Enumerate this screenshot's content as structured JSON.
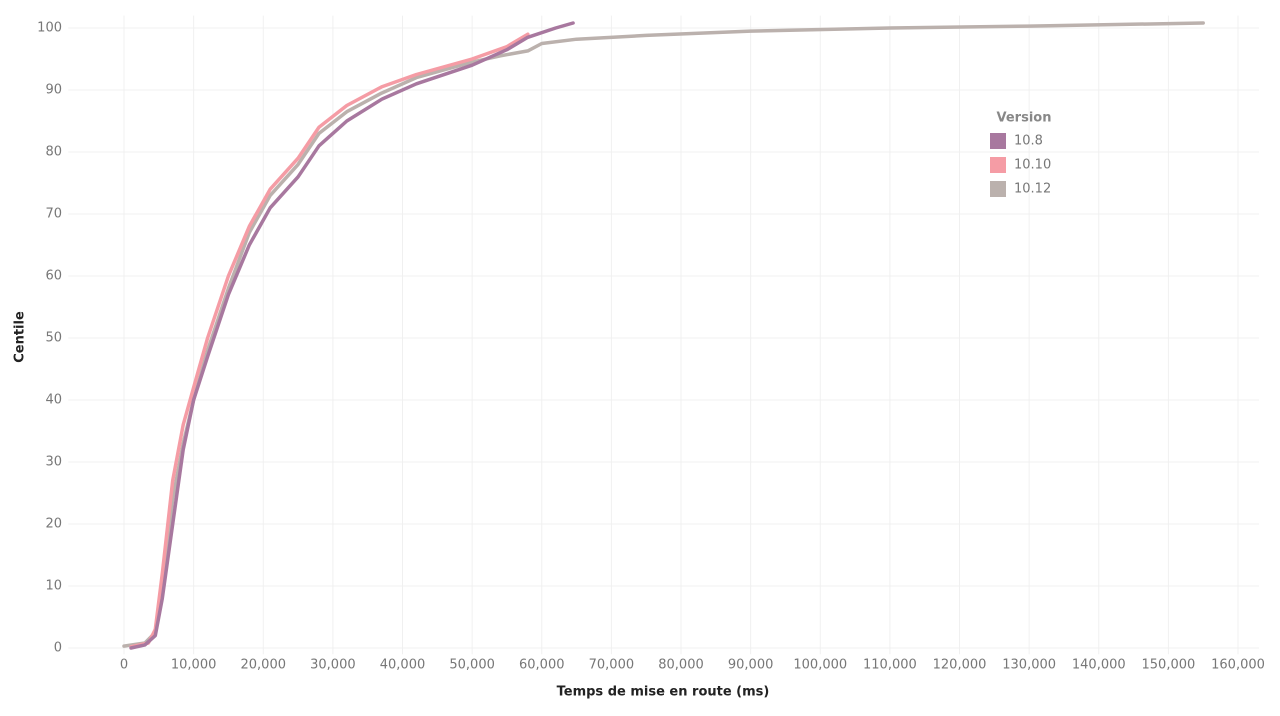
{
  "chart_data": {
    "type": "line",
    "x_label": "Temps de mise en route (ms)",
    "y_label": "Centile",
    "legend_title": "Version",
    "legend_position": "upper right",
    "grid": true,
    "xlim": [
      -8000,
      163000
    ],
    "ylim": [
      -1,
      102
    ],
    "xticks": [
      0,
      {
        "value": 10000,
        "label": "10,000"
      },
      {
        "value": 20000,
        "label": "20,000"
      },
      {
        "value": 30000,
        "label": "30,000"
      },
      {
        "value": 40000,
        "label": "40,000"
      },
      {
        "value": 50000,
        "label": "50,000"
      },
      {
        "value": 60000,
        "label": "60,000"
      },
      {
        "value": 70000,
        "label": "70,000"
      },
      {
        "value": 80000,
        "label": "80,000"
      },
      {
        "value": 90000,
        "label": "90,000"
      },
      {
        "value": 100000,
        "label": "100,000"
      },
      {
        "value": 110000,
        "label": "110,000"
      },
      {
        "value": 120000,
        "label": "120,000"
      },
      {
        "value": 130000,
        "label": "130,000"
      },
      {
        "value": 140000,
        "label": "140,000"
      },
      {
        "value": 150000,
        "label": "150,000"
      },
      {
        "value": 160000,
        "label": "160,000"
      }
    ],
    "yticks": [
      0,
      10,
      20,
      30,
      40,
      50,
      60,
      70,
      80,
      90,
      100
    ],
    "series": [
      {
        "name": "10.12",
        "color": "#bbb1ad",
        "x": [
          0,
          3000,
          4500,
          5500,
          7000,
          8500,
          10000,
          12000,
          15000,
          18000,
          21000,
          25000,
          28000,
          32000,
          37000,
          42000,
          50000,
          54000,
          58000,
          60000,
          65000,
          75000,
          90000,
          110000,
          130000,
          155000
        ],
        "values": [
          0.3,
          0.8,
          2.5,
          10,
          24,
          33,
          40,
          48,
          58,
          67,
          73,
          78,
          83,
          86.5,
          89.5,
          92,
          94.5,
          95.5,
          96.3,
          97.5,
          98.2,
          98.8,
          99.5,
          100,
          100.3,
          100.8
        ]
      },
      {
        "name": "10.10",
        "color": "#f59ca5",
        "x": [
          1000,
          3500,
          4500,
          5500,
          7000,
          8500,
          10000,
          12000,
          15000,
          18000,
          21000,
          25000,
          28000,
          32000,
          37000,
          42000,
          50000,
          55000,
          58000
        ],
        "values": [
          0.2,
          0.8,
          3,
          12,
          27,
          36,
          42,
          50,
          60,
          68,
          74,
          79,
          84,
          87.5,
          90.5,
          92.5,
          95,
          97,
          99
        ]
      },
      {
        "name": "10.8",
        "color": "#a8789f",
        "x": [
          1000,
          3000,
          4500,
          5500,
          7000,
          8500,
          10000,
          12000,
          15000,
          18000,
          21000,
          25000,
          28000,
          32000,
          37000,
          42000,
          50000,
          55000,
          58000,
          62000,
          64500
        ],
        "values": [
          0,
          0.5,
          2,
          8,
          20,
          32,
          40,
          47,
          57,
          65,
          71,
          76,
          81,
          85,
          88.5,
          91,
          94,
          96.5,
          98.5,
          100,
          100.8
        ]
      }
    ]
  }
}
